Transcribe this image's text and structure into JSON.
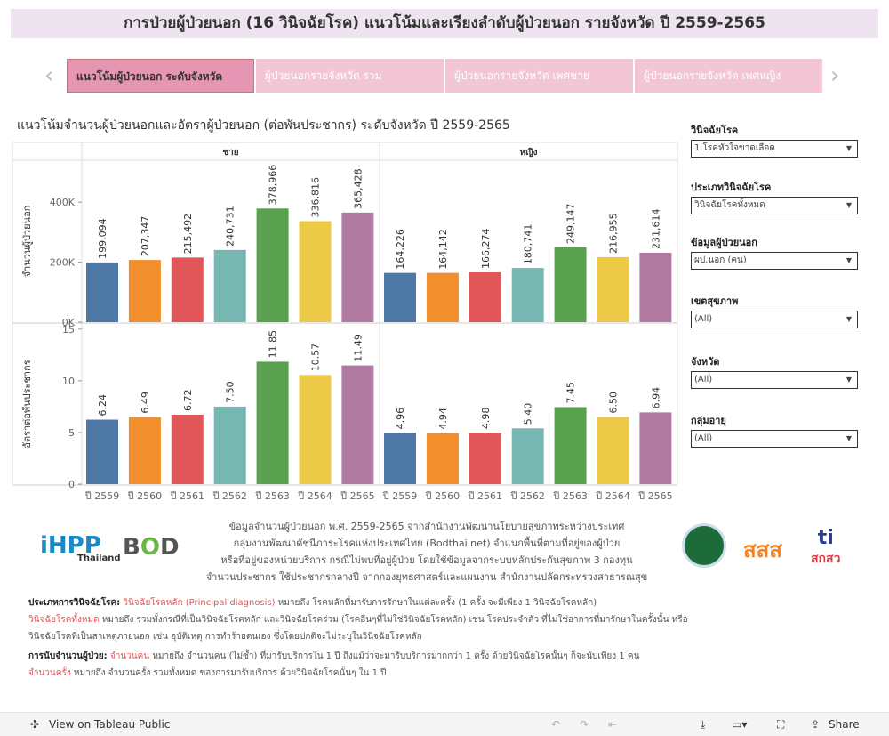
{
  "title": "การป่วยผู้ป่วยนอก (16 วินิจฉัยโรค) แนวโน้มและเรียงลำดับผู้ป่วยนอก รายจังหวัด ปี 2559-2565",
  "nav": {
    "prev_icon": "chevron-left-icon",
    "next_icon": "chevron-right-icon"
  },
  "tabs": [
    {
      "label": "แนวโน้มผู้ป่วยนอก ระดับจังหวัด",
      "active": true
    },
    {
      "label": "ผู้ป่วยนอกรายจังหวัด รวม"
    },
    {
      "label": "ผู้ป่วยนอกรายจังหวัด เพศชาย"
    },
    {
      "label": "ผู้ป่วยนอกรายจังหวัด เพศหญิง"
    }
  ],
  "subtitle": "แนวโน้มจำนวนผู้ป่วยนอกและอัตราผู้ป่วยนอก (ต่อพันประชากร) ระดับจังหวัด ปี 2559-2565",
  "chart_data": {
    "type": "bar",
    "panels": [
      "ชาย",
      "หญิง"
    ],
    "categories": [
      "ปี 2559",
      "ปี 2560",
      "ปี 2561",
      "ปี 2562",
      "ปี 2563",
      "ปี 2564",
      "ปี 2565"
    ],
    "colors": [
      "#4e79a7",
      "#f28e2b",
      "#e15759",
      "#76b7b2",
      "#59a14f",
      "#edc948",
      "#b07aa1"
    ],
    "rows": [
      {
        "ylabel": "จำนวนผู้ป่วยนอก",
        "ylim": [
          0,
          540000
        ],
        "ticks": [
          0,
          200000,
          400000
        ],
        "tick_labels": [
          "0K",
          "200K",
          "400K"
        ],
        "values": {
          "ชาย": [
            199094,
            207347,
            215492,
            240731,
            378966,
            336816,
            365428
          ],
          "หญิง": [
            164226,
            164142,
            166274,
            180741,
            249147,
            216955,
            231614
          ]
        },
        "labels": {
          "ชาย": [
            "199,094",
            "207,347",
            "215,492",
            "240,731",
            "378,966",
            "336,816",
            "365,428"
          ],
          "หญิง": [
            "164,226",
            "164,142",
            "166,274",
            "180,741",
            "249,147",
            "216,955",
            "231,614"
          ]
        }
      },
      {
        "ylabel": "อัตราต่อพันประชากร",
        "ylim": [
          0,
          15.5
        ],
        "ticks": [
          0,
          5,
          10,
          15
        ],
        "tick_labels": [
          "0",
          "5",
          "10",
          "15"
        ],
        "values": {
          "ชาย": [
            6.24,
            6.49,
            6.72,
            7.5,
            11.85,
            10.57,
            11.49
          ],
          "หญิง": [
            4.96,
            4.94,
            4.98,
            5.4,
            7.45,
            6.5,
            6.94
          ]
        },
        "labels": {
          "ชาย": [
            "6.24",
            "6.49",
            "6.72",
            "7.50",
            "11.85",
            "10.57",
            "11.49"
          ],
          "หญิง": [
            "4.96",
            "4.94",
            "4.98",
            "5.40",
            "7.45",
            "6.50",
            "6.94"
          ]
        }
      }
    ],
    "grid": false
  },
  "filters": [
    {
      "label": "วินิจฉัยโรค",
      "value": "1.โรคหัวใจขาดเลือด"
    },
    {
      "label": "ประเภทวินิจฉัยโรค",
      "value": "วินิจฉัยโรคทั้งหมด"
    },
    {
      "label": "ข้อมูลผู้ป่วยนอก",
      "value": "ผป.นอก (คน)"
    },
    {
      "label": "เขตสุขภาพ",
      "value": "(All)"
    },
    {
      "label": "จังหวัด",
      "value": "(All)"
    },
    {
      "label": "กลุ่มอายุ",
      "value": "(All)"
    }
  ],
  "source": [
    "ข้อมูลจำนวนผู้ป่วยนอก พ.ศ. 2559-2565 จากสำนักงานพัฒนานโยบายสุขภาพระหว่างประเทศ",
    "กลุ่มงานพัฒนาดัชนีภาระโรคแห่งประเทศไทย (Bodthai.net) จำแนกพื้นที่ตามที่อยู่ของผู้ป่วย",
    "หรือที่อยู่ของหน่วยบริการ กรณีไม่พบที่อยู่ผู้ป่วย โดยใช้ข้อมูลจากระบบหลักประกันสุขภาพ 3 กองทุน",
    "จำนวนประชากร ใช้ประชากรกลางปี จากกองยุทธศาสตร์และแผนงาน สำนักงานปลัดกระทรวงสาธารณสุข"
  ],
  "logos": {
    "ihpp": "iHPP",
    "ihpp_sub": "Thailand",
    "bod": "BOD",
    "bod_sub": "Burden of Disease Thailand",
    "moph": "MOPH",
    "thaihealth": "สสส",
    "thaihealth_sub": "สำนักงานกองทุนสนับสนุนการสร้างเสริมสุขภาพ",
    "nhso": "สกสว"
  },
  "notes": {
    "l1_head": "ประเภทการวินิจฉัยโรค:",
    "l1_red": "วินิจฉัยโรคหลัก (Principal diagnosis)",
    "l1_text": " หมายถึง โรคหลักที่มารับการรักษาในแต่ละครั้ง (1 ครั้ง จะมีเพียง 1 วินิจฉัยโรคหลัก)",
    "l2_red": "วินิจฉัยโรคทั้งหมด",
    "l2_text": " หมายถึง รวมทั้งกรณีที่เป็นวินิจฉัยโรคหลัก และวินิจฉัยโรคร่วม (โรคอื่นๆที่ไม่ใช่วินิจฉัยโรคหลัก) เช่น โรคประจำตัว ที่ไม่ใช่อาการที่มารักษาในครั้งนั้น หรือ",
    "l3_text": "วินิจฉัยโรคที่เป็นสาเหตุภายนอก เช่น อุบัติเหตุ การทำร้ายตนเอง ซึ่งโดยปกติจะไม่ระบุในวินิจฉัยโรคหลัก",
    "l4_head": "การนับจำนวนผู้ป่วย:",
    "l4_red": "จำนวนคน",
    "l4_text": " หมายถึง จำนวนคน (ไม่ซ้ำ) ที่มารับบริการใน 1 ปี ถึงแม้ว่าจะมารับบริการมากกว่า 1 ครั้ง ด้วยวินิจฉัยโรคนั้นๆ ก็จะนับเพียง 1 คน",
    "l5_red": "จำนวนครั้ง",
    "l5_text": " หมายถึง จำนวนครั้ง รวมทั้งหมด ของการมารับบริการ ด้วยวินิจฉัยโรคนั้นๆ ใน 1 ปี"
  },
  "footer": {
    "view_label": "View on Tableau Public",
    "share_label": "Share"
  }
}
